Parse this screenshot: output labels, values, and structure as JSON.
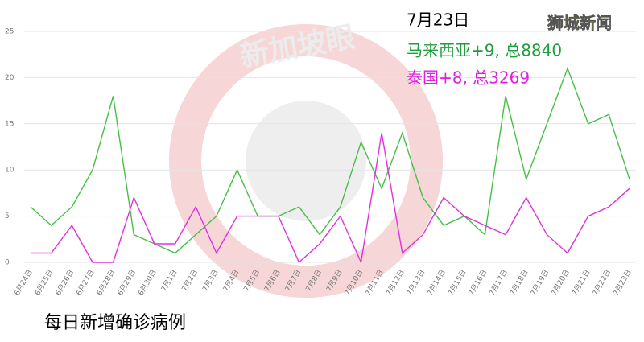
{
  "chart_data": {
    "type": "line",
    "title": "每日新增确诊病例",
    "watermark": "新加坡眼",
    "logo": "狮城新闻",
    "annotations": [
      {
        "text": "7月23日",
        "color": "#000000"
      },
      {
        "text": "马来西亚+9, 总8840",
        "color": "#1f9e3c"
      },
      {
        "text": "泰国+8, 总3269",
        "color": "#e020e0"
      }
    ],
    "categories": [
      "6月24日",
      "6月25日",
      "6月26日",
      "6月27日",
      "6月28日",
      "6月29日",
      "6月30日",
      "7月1日",
      "7月2日",
      "7月3日",
      "7月4日",
      "7月5日",
      "7月6日",
      "7月7日",
      "7月8日",
      "7月9日",
      "7月10日",
      "7月11日",
      "7月12日",
      "7月13日",
      "7月14日",
      "7月15日",
      "7月16日",
      "7月17日",
      "7月18日",
      "7月19日",
      "7月20日",
      "7月21日",
      "7月22日",
      "7月23日"
    ],
    "series": [
      {
        "color": "#44c044",
        "values": [
          6,
          4,
          6,
          10,
          18,
          3,
          2,
          1,
          3,
          5,
          10,
          5,
          5,
          6,
          3,
          6,
          13,
          8,
          14,
          7,
          4,
          5,
          3,
          18,
          9,
          15,
          21,
          15,
          16,
          9
        ]
      },
      {
        "color": "#e030e0",
        "values": [
          1,
          1,
          4,
          0,
          0,
          7,
          2,
          2,
          6,
          1,
          5,
          5,
          5,
          0,
          2,
          5,
          0,
          14,
          1,
          3,
          7,
          5,
          4,
          3,
          7,
          3,
          1,
          5,
          6,
          8
        ]
      }
    ],
    "ylim": [
      0,
      25
    ],
    "yticks": [
      0,
      5,
      10,
      15,
      20,
      25
    ],
    "grid": true
  }
}
